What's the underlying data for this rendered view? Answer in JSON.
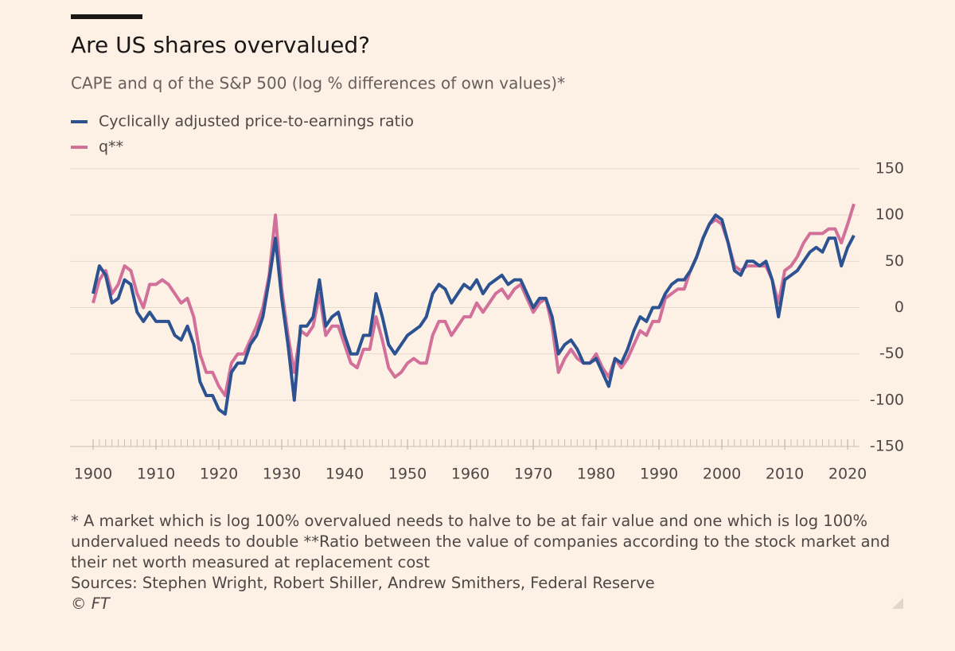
{
  "chart_data": {
    "type": "line",
    "title": "Are US shares overvalued?",
    "subtitle": "CAPE and q of the S&P 500 (log % differences of own values)*",
    "footnote": "* A market which is log 100% overvalued needs to halve to be at fair value and one which is log 100% undervalued needs to double **Ratio between the value of companies according to the stock market and their net worth measured at replacement cost",
    "source": "Sources: Stephen Wright, Robert Shiller, Andrew Smithers, Federal Reserve",
    "credit": "© FT",
    "x": [
      1900,
      1901,
      1902,
      1903,
      1904,
      1905,
      1906,
      1907,
      1908,
      1909,
      1910,
      1911,
      1912,
      1913,
      1914,
      1915,
      1916,
      1917,
      1918,
      1919,
      1920,
      1921,
      1922,
      1923,
      1924,
      1925,
      1926,
      1927,
      1928,
      1929,
      1930,
      1931,
      1932,
      1933,
      1934,
      1935,
      1936,
      1937,
      1938,
      1939,
      1940,
      1941,
      1942,
      1943,
      1944,
      1945,
      1946,
      1947,
      1948,
      1949,
      1950,
      1951,
      1952,
      1953,
      1954,
      1955,
      1956,
      1957,
      1958,
      1959,
      1960,
      1961,
      1962,
      1963,
      1964,
      1965,
      1966,
      1967,
      1968,
      1969,
      1970,
      1971,
      1972,
      1973,
      1974,
      1975,
      1976,
      1977,
      1978,
      1979,
      1980,
      1981,
      1982,
      1983,
      1984,
      1985,
      1986,
      1987,
      1988,
      1989,
      1990,
      1991,
      1992,
      1993,
      1994,
      1995,
      1996,
      1997,
      1998,
      1999,
      2000,
      2001,
      2002,
      2003,
      2004,
      2005,
      2006,
      2007,
      2008,
      2009,
      2010,
      2011,
      2012,
      2013,
      2014,
      2015,
      2016,
      2017,
      2018,
      2019,
      2020,
      2021
    ],
    "series": [
      {
        "name": "Cyclically adjusted price-to-earnings ratio",
        "color": "#2c5291",
        "values": [
          15,
          45,
          35,
          5,
          10,
          30,
          25,
          -5,
          -15,
          -5,
          -15,
          -15,
          -15,
          -30,
          -35,
          -20,
          -40,
          -80,
          -95,
          -95,
          -110,
          -115,
          -70,
          -60,
          -60,
          -40,
          -30,
          -10,
          30,
          75,
          10,
          -40,
          -100,
          -20,
          -20,
          -10,
          30,
          -20,
          -10,
          -5,
          -30,
          -50,
          -50,
          -30,
          -30,
          15,
          -10,
          -40,
          -50,
          -40,
          -30,
          -25,
          -20,
          -10,
          15,
          25,
          20,
          5,
          15,
          25,
          20,
          30,
          15,
          25,
          30,
          35,
          25,
          30,
          30,
          15,
          0,
          10,
          10,
          -10,
          -50,
          -40,
          -35,
          -45,
          -60,
          -60,
          -55,
          -70,
          -85,
          -55,
          -60,
          -45,
          -25,
          -10,
          -15,
          0,
          0,
          15,
          25,
          30,
          30,
          40,
          55,
          75,
          90,
          100,
          95,
          70,
          40,
          35,
          50,
          50,
          45,
          50,
          30,
          -10,
          30,
          35,
          40,
          50,
          60,
          65,
          60,
          75,
          75,
          45,
          65,
          78
        ]
      },
      {
        "name": "q**",
        "color": "#d2709a",
        "values": [
          5,
          30,
          40,
          15,
          25,
          45,
          40,
          15,
          0,
          25,
          25,
          30,
          25,
          15,
          5,
          10,
          -10,
          -50,
          -70,
          -70,
          -85,
          -95,
          -60,
          -50,
          -50,
          -35,
          -20,
          0,
          35,
          100,
          20,
          -30,
          -70,
          -25,
          -30,
          -20,
          15,
          -30,
          -20,
          -20,
          -40,
          -60,
          -65,
          -45,
          -45,
          -10,
          -35,
          -65,
          -75,
          -70,
          -60,
          -55,
          -60,
          -60,
          -30,
          -15,
          -15,
          -30,
          -20,
          -10,
          -10,
          5,
          -5,
          5,
          15,
          20,
          10,
          20,
          25,
          10,
          -5,
          5,
          10,
          -20,
          -70,
          -55,
          -45,
          -55,
          -60,
          -60,
          -50,
          -65,
          -75,
          -55,
          -65,
          -55,
          -40,
          -25,
          -30,
          -15,
          -15,
          10,
          15,
          20,
          20,
          40,
          55,
          75,
          90,
          95,
          90,
          70,
          45,
          40,
          45,
          45,
          45,
          45,
          30,
          5,
          40,
          45,
          55,
          70,
          80,
          80,
          80,
          85,
          85,
          70,
          90,
          112
        ]
      }
    ],
    "xlim": [
      1900,
      2021
    ],
    "xticks": [
      1900,
      1910,
      1920,
      1930,
      1940,
      1950,
      1960,
      1970,
      1980,
      1990,
      2000,
      2010,
      2020
    ],
    "ylim": [
      -150,
      150
    ],
    "yticks": [
      -150,
      -100,
      -50,
      0,
      50,
      100,
      150
    ],
    "grid": true
  }
}
